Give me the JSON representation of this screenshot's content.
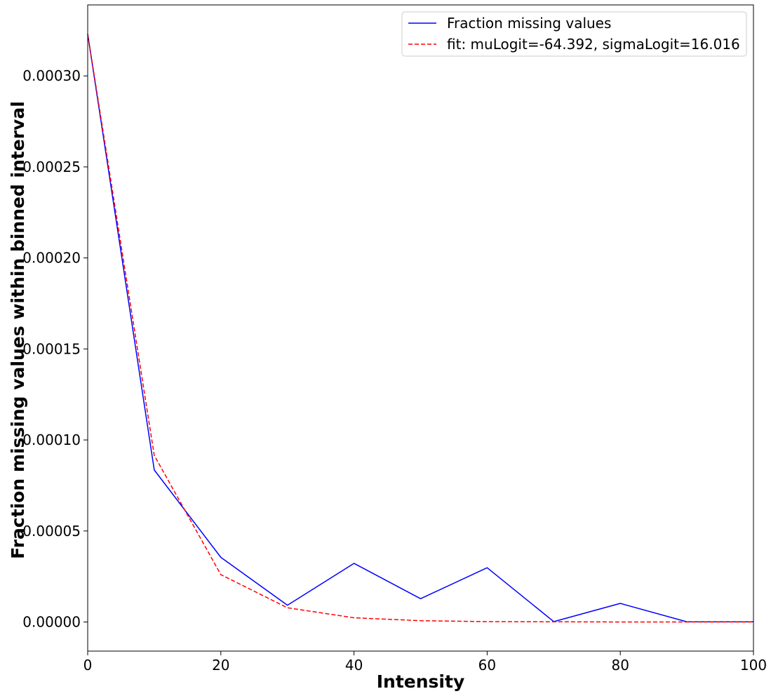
{
  "chart_data": {
    "type": "line",
    "title": "",
    "xlabel": "Intensity",
    "ylabel": "Fraction missing values within binned interval",
    "xlim": [
      0,
      100
    ],
    "ylim": [
      -1.6e-05,
      0.000339
    ],
    "xticks": [
      0,
      20,
      40,
      60,
      80,
      100
    ],
    "xtick_labels": [
      "0",
      "20",
      "40",
      "60",
      "80",
      "100"
    ],
    "yticks": [
      0.0,
      5e-05,
      0.0001,
      0.00015,
      0.0002,
      0.00025,
      0.0003
    ],
    "ytick_labels": [
      "0.00000",
      "0.00005",
      "0.00010",
      "0.00015",
      "0.00020",
      "0.00025",
      "0.00030"
    ],
    "grid": false,
    "legend_position": "top-right",
    "x": [
      0,
      10,
      20,
      30,
      40,
      50,
      60,
      70,
      80,
      90,
      100
    ],
    "series": [
      {
        "name": "Fraction missing values",
        "color": "#0000ff",
        "style": "solid",
        "values": [
          0.000323,
          8.35e-05,
          3.55e-05,
          9.2e-06,
          3.22e-05,
          1.28e-05,
          2.98e-05,
          2e-07,
          1.02e-05,
          1e-07,
          1e-07
        ]
      },
      {
        "name": "fit: muLogit=-64.392, sigmaLogit=16.016",
        "color": "#ff0000",
        "style": "dashed",
        "values": [
          0.000323,
          9.15e-05,
          2.6e-05,
          7.8e-06,
          2.3e-06,
          7e-07,
          2e-07,
          1e-07,
          0.0,
          0.0,
          0.0
        ]
      }
    ]
  }
}
